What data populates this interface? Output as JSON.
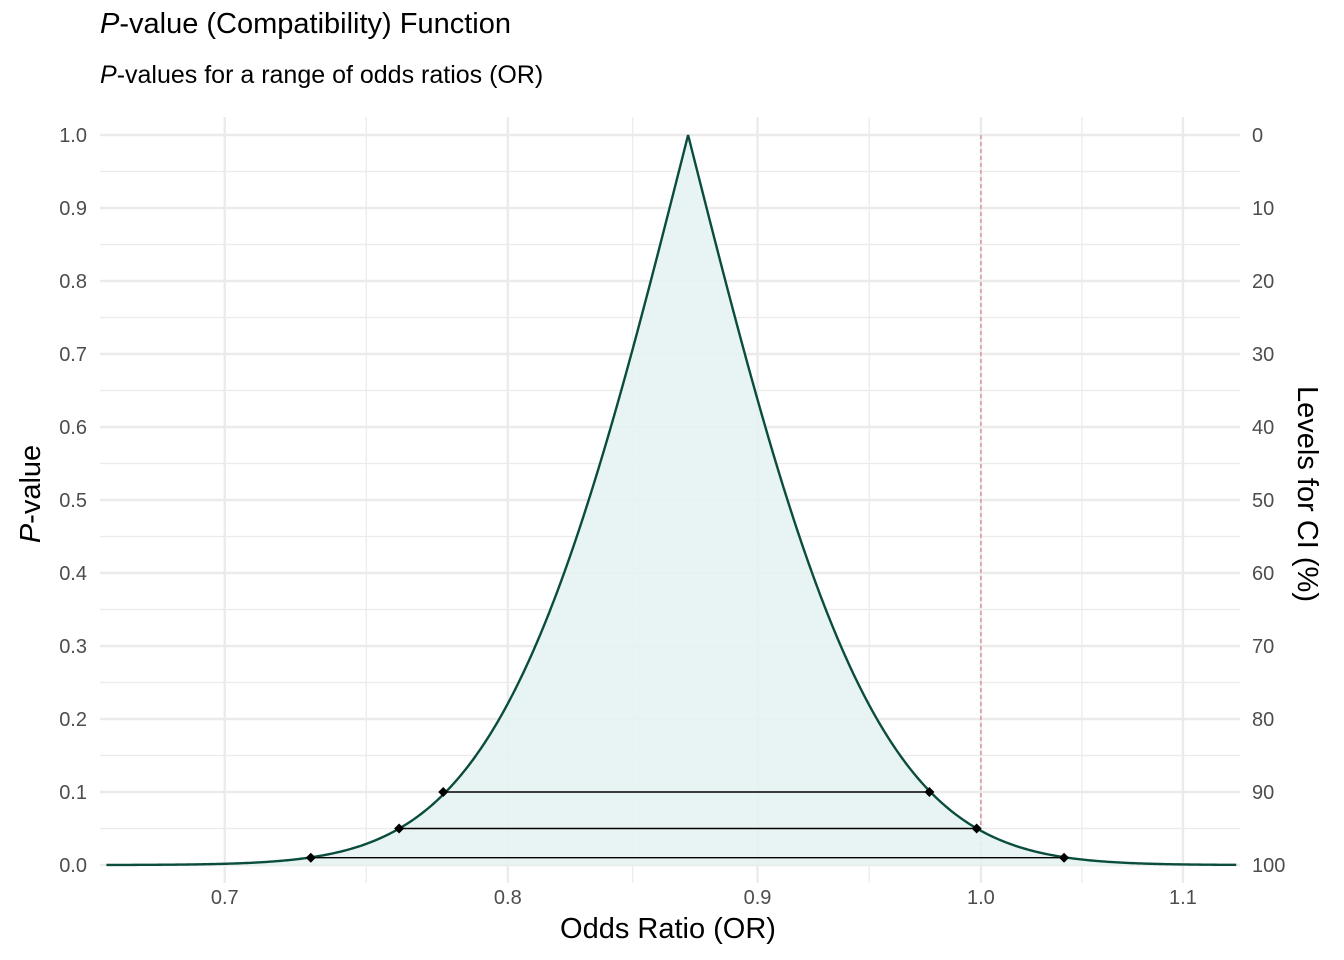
{
  "title": {
    "italic": "P",
    "rest": "-value (Compatibility) Function"
  },
  "subtitle": {
    "italic": "P",
    "rest": "-values for a range of odds ratios (OR)"
  },
  "chart_data": {
    "type": "area",
    "xlabel": "Odds Ratio (OR)",
    "ylabel": {
      "italic": "P",
      "rest": "-value"
    },
    "y2label": "Levels for CI (%)",
    "log_x": true,
    "xlim": [
      0.66,
      1.13
    ],
    "ylim": [
      0,
      1
    ],
    "x_ticks": [
      0.7,
      0.8,
      0.9,
      1.0,
      1.1
    ],
    "x_tick_labels": [
      "0.7",
      "0.8",
      "0.9",
      "1.0",
      "1.1"
    ],
    "y_ticks": [
      0,
      0.1,
      0.2,
      0.3,
      0.4,
      0.5,
      0.6,
      0.7,
      0.8,
      0.9,
      1.0
    ],
    "y_tick_labels": [
      "0.0",
      "0.1",
      "0.2",
      "0.3",
      "0.4",
      "0.5",
      "0.6",
      "0.7",
      "0.8",
      "0.9",
      "1.0"
    ],
    "y2_tick_labels": [
      "100",
      "90",
      "80",
      "70",
      "60",
      "50",
      "40",
      "30",
      "20",
      "10",
      "0"
    ],
    "point_estimate": 0.871,
    "curve_x_range": [
      0.662,
      1.128
    ],
    "null_line_x": 1.0,
    "confidence_intervals": [
      {
        "level_percent": 90,
        "p": 0.1,
        "lower": 0.776,
        "upper": 0.976
      },
      {
        "level_percent": 95,
        "p": 0.05,
        "lower": 0.76,
        "upper": 0.998
      },
      {
        "level_percent": 99,
        "p": 0.01,
        "lower": 0.729,
        "upper": 1.04
      }
    ],
    "grid": true,
    "colors": {
      "curve": "#0a4d3c",
      "fill": "#e6f3f2",
      "null_line": "#d98080",
      "interval": "#000000",
      "grid": "#ebebeb"
    }
  }
}
